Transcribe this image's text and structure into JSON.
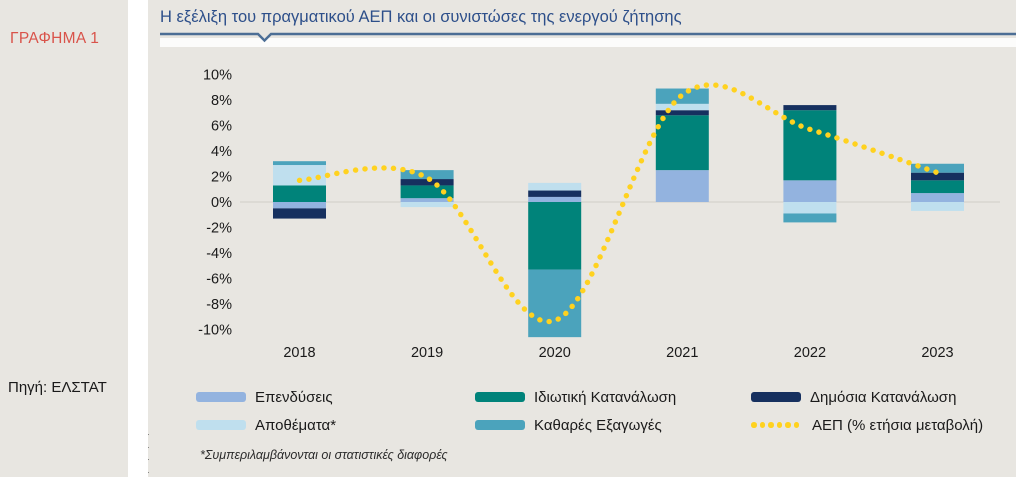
{
  "sidebar": {
    "figure_label": "ΓΡΑΦΗΜΑ 1",
    "source": "Πηγή: ΕΛΣΤΑΤ"
  },
  "panel": {
    "title": "Η εξέλιξη του πραγματικού ΑΕΠ και οι συνιστώσες της ενεργού ζήτησης",
    "footnote": "*Συμπεριλαμβάνονται οι στατιστικές διαφορές",
    "clipped_text_fragments": [
      "(",
      "("
    ]
  },
  "colors": {
    "panel_bg": "#E8E6E1",
    "title_blue": "#2D4F8A",
    "rule_blue": "#4C6E95",
    "figure_red": "#D9534A",
    "zero_gridline": "#D4D2CC",
    "axis_text": "#1a1a1a",
    "investments": "#93B3DF",
    "inventories": "#BFDFEE",
    "private_consumption": "#00837A",
    "net_exports": "#4BA3BC",
    "public_consumption": "#16305F",
    "gdp_line": "#FFD21F"
  },
  "chart_data": {
    "type": "bar",
    "subtype": "stacked-bars-with-smoothed-dotted-line",
    "title": "Η εξέλιξη του πραγματικού ΑΕΠ και οι συνιστώσες της ενεργού ζήτησης",
    "categories": [
      "2018",
      "2019",
      "2020",
      "2021",
      "2022",
      "2023"
    ],
    "series": [
      {
        "name": "Επενδύσεις",
        "color_key": "investments",
        "values": [
          -0.5,
          0.3,
          0.4,
          2.5,
          1.7,
          0.7
        ]
      },
      {
        "name": "Ιδιωτική Κατανάλωση",
        "color_key": "private_consumption",
        "values": [
          1.3,
          1.0,
          -5.3,
          4.3,
          5.5,
          1.0
        ]
      },
      {
        "name": "Δημόσια Κατανάλωση",
        "color_key": "public_consumption",
        "values": [
          -0.8,
          0.5,
          0.5,
          0.4,
          0.4,
          0.6
        ]
      },
      {
        "name": "Αποθέματα*",
        "color_key": "inventories",
        "values": [
          1.6,
          -0.4,
          0.6,
          0.5,
          -0.9,
          -0.7
        ]
      },
      {
        "name": "Καθαρές Εξαγωγές",
        "color_key": "net_exports",
        "values": [
          0.3,
          0.7,
          -5.3,
          1.2,
          -0.7,
          0.7
        ]
      }
    ],
    "line_series": {
      "name": "ΑΕΠ (% ετήσια μεταβολή)",
      "color_key": "gdp_line",
      "values": [
        1.7,
        1.9,
        -9.3,
        8.4,
        5.7,
        2.3
      ]
    },
    "y_ticks": [
      {
        "value": 10,
        "label": "10%"
      },
      {
        "value": 8,
        "label": "8%"
      },
      {
        "value": 6,
        "label": "6%"
      },
      {
        "value": 4,
        "label": "4%"
      },
      {
        "value": 2,
        "label": "2%"
      },
      {
        "value": 0,
        "label": "0%"
      },
      {
        "value": -2,
        "label": "-2%"
      },
      {
        "value": -4,
        "label": "-4%"
      },
      {
        "value": -6,
        "label": "-6%"
      },
      {
        "value": -8,
        "label": "-8%"
      },
      {
        "value": -10,
        "label": "-10%"
      }
    ],
    "ylim": [
      -11.9,
      11.9
    ],
    "grid": "zero-line-only",
    "legend_position": "bottom"
  },
  "legend": {
    "rows": [
      [
        {
          "label": "Επενδύσεις",
          "swatch": "investments"
        },
        {
          "label": "Ιδιωτική Κατανάλωση",
          "swatch": "private_consumption"
        },
        {
          "label": "Δημόσια Κατανάλωση",
          "swatch": "public_consumption"
        }
      ],
      [
        {
          "label": "Αποθέματα*",
          "swatch": "inventories"
        },
        {
          "label": "Καθαρές Εξαγωγές",
          "swatch": "net_exports"
        },
        {
          "label": "ΑΕΠ (% ετήσια μεταβολή)",
          "swatch": "gdp_line_dots"
        }
      ]
    ]
  }
}
